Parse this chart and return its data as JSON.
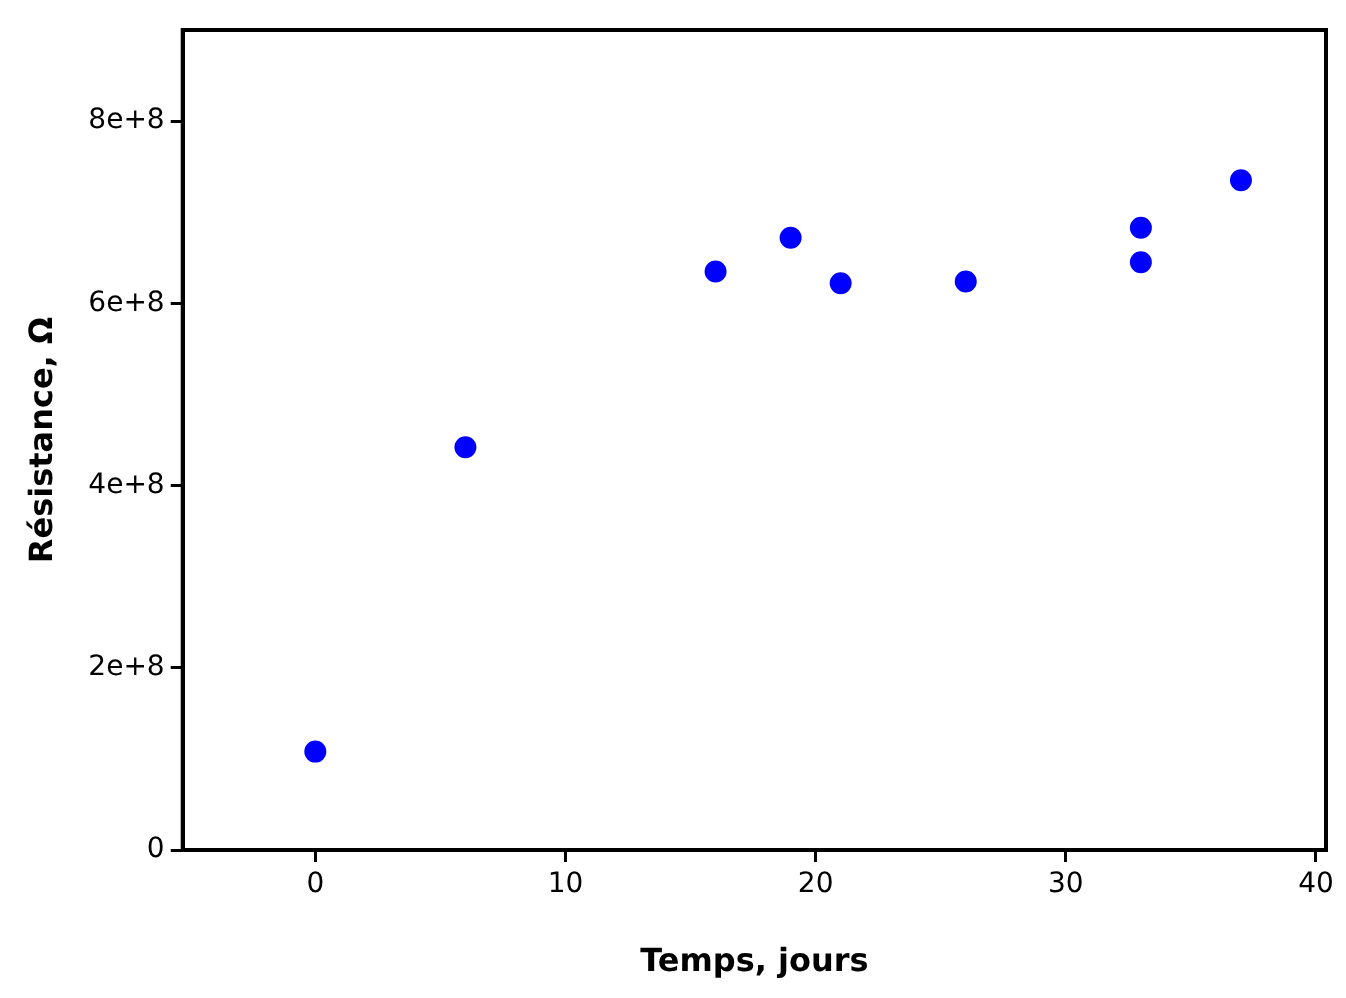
{
  "chart_data": {
    "type": "scatter",
    "xlabel": "Temps, jours",
    "ylabel": "Résistance, Ω",
    "x": [
      0,
      6,
      16,
      19,
      21,
      26,
      33,
      33,
      37
    ],
    "series": [
      {
        "color": "#0000ff",
        "values": [
          108000000,
          442000000,
          635000000,
          672000000,
          622000000,
          624000000,
          683000000,
          645000000,
          735000000
        ]
      }
    ],
    "xlim": [
      -5.3,
      40.4
    ],
    "xticks": [
      0,
      10,
      20,
      30,
      40
    ],
    "ylim": [
      0,
      900000000
    ],
    "yticks": [
      0,
      {
        "value": 200000000,
        "label": "2e+8"
      },
      {
        "value": 400000000,
        "label": "4e+8"
      },
      {
        "value": 600000000,
        "label": "6e+8"
      },
      {
        "value": 800000000,
        "label": "8e+8"
      }
    ],
    "grid": false,
    "legend": false,
    "marker": "circle"
  }
}
